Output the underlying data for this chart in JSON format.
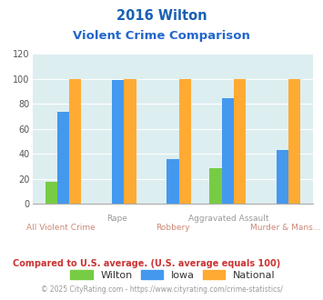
{
  "title_line1": "2016 Wilton",
  "title_line2": "Violent Crime Comparison",
  "categories": [
    "All Violent Crime",
    "Rape",
    "Robbery",
    "Aggravated Assault",
    "Murder & Mans..."
  ],
  "cat_labels_top": [
    "",
    "Rape",
    "",
    "Aggravated Assault",
    ""
  ],
  "cat_labels_bot": [
    "All Violent Crime",
    "",
    "Robbery",
    "",
    "Murder & Mans..."
  ],
  "wilton": [
    18,
    0,
    0,
    29,
    0
  ],
  "iowa": [
    74,
    99,
    36,
    85,
    43
  ],
  "national": [
    100,
    100,
    100,
    100,
    100
  ],
  "wilton_color": "#77cc44",
  "iowa_color": "#4499ee",
  "national_color": "#ffaa33",
  "bg_color": "#ddeef0",
  "title_color": "#1a5fb4",
  "subtitle_color": "#2266cc",
  "xlabel_top_color": "#999999",
  "xlabel_bot_color": "#cc8877",
  "ylim": [
    0,
    120
  ],
  "yticks": [
    0,
    20,
    40,
    60,
    80,
    100,
    120
  ],
  "footnote1": "Compared to U.S. average. (U.S. average equals 100)",
  "footnote2": "© 2025 CityRating.com - https://www.cityrating.com/crime-statistics/",
  "footnote1_color": "#cc3333",
  "footnote2_color": "#999999",
  "legend_labels": [
    "Wilton",
    "Iowa",
    "National"
  ]
}
